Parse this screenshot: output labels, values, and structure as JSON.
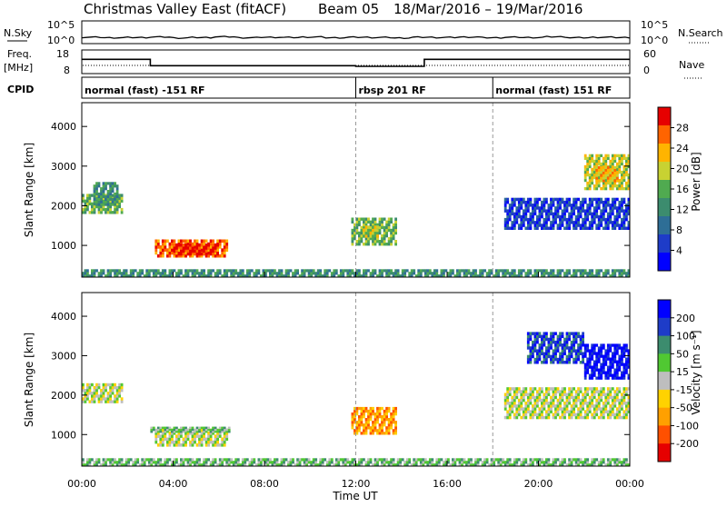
{
  "header": {
    "title": "Christmas Valley East (fitACF)",
    "beam": "Beam 05",
    "date_range": "18/Mar/2016 – 19/Mar/2016"
  },
  "noise_panel": {
    "left_label": "N.Sky",
    "right_label": "N.Search",
    "left_ticks": [
      "10^5",
      "10^0"
    ],
    "right_ticks": [
      "10^5",
      "10^0"
    ],
    "sky_level": [
      0.28,
      0.26,
      0.27,
      0.29,
      0.25,
      0.27,
      0.3,
      0.26,
      0.28,
      0.27,
      0.29,
      0.26,
      0.28,
      0.27,
      0.25,
      0.28,
      0.27,
      0.29,
      0.26,
      0.28,
      0.27,
      0.3,
      0.26,
      0.28,
      0.27
    ]
  },
  "freq_panel": {
    "left_label_1": "Freq.",
    "left_label_2": "[MHz]",
    "left_ticks": [
      "18",
      "8"
    ],
    "right_label": "Nave",
    "right_ticks": [
      "60",
      "0"
    ],
    "freq_steps": [
      {
        "start_hour": 0,
        "end_hour": 3,
        "mhz": 14.5
      },
      {
        "start_hour": 3,
        "end_hour": 12,
        "mhz": 10.6
      },
      {
        "start_hour": 12,
        "end_hour": 15,
        "mhz": 10.2
      },
      {
        "start_hour": 15,
        "end_hour": 24,
        "mhz": 14.5
      }
    ]
  },
  "cpid_panel": {
    "label": "CPID",
    "segments": [
      {
        "start_hour": 0,
        "text": "normal (fast) -151 RF"
      },
      {
        "start_hour": 12,
        "text": "rbsp 201 RF"
      },
      {
        "start_hour": 18,
        "text": "normal (fast) 151 RF"
      }
    ]
  },
  "colors": {
    "power_scale": [
      "#0000ff",
      "#1e3cc8",
      "#2e6e96",
      "#3c8c6e",
      "#50aa50",
      "#c8d232",
      "#ffb400",
      "#ff6400",
      "#e60000"
    ],
    "velocity_scale": [
      "#0000ff",
      "#1e3cc8",
      "#3c8c6e",
      "#50c832",
      "#bebebe",
      "#ffd200",
      "#ffa000",
      "#ff5000",
      "#e60000"
    ]
  },
  "chart_data": [
    {
      "type": "heatmap",
      "name": "power",
      "ylabel": "Slant Range [km]",
      "ylim": [
        200,
        4600
      ],
      "yticks": [
        1000,
        2000,
        3000,
        4000
      ],
      "xlim": [
        0,
        24
      ],
      "colorbar_label": "Power [dB]",
      "colorbar_ticks": [
        "28",
        "24",
        "20",
        "16",
        "12",
        "8",
        "4"
      ],
      "regions": [
        {
          "t0": 3.2,
          "t1": 6.4,
          "r0": 700,
          "r1": 1150,
          "level": 7
        },
        {
          "t0": 4.0,
          "t1": 6.0,
          "r0": 750,
          "r1": 1050,
          "level": 8
        },
        {
          "t0": 0.0,
          "t1": 1.8,
          "r0": 1800,
          "r1": 2300,
          "level": 4
        },
        {
          "t0": 0.5,
          "t1": 1.6,
          "r0": 2000,
          "r1": 2600,
          "level": 3
        },
        {
          "t0": 11.8,
          "t1": 13.8,
          "r0": 1000,
          "r1": 1700,
          "level": 4
        },
        {
          "t0": 12.3,
          "t1": 13.0,
          "r0": 1200,
          "r1": 1500,
          "level": 5
        },
        {
          "t0": 22.0,
          "t1": 24.0,
          "r0": 2400,
          "r1": 3300,
          "level": 5
        },
        {
          "t0": 22.5,
          "t1": 23.5,
          "r0": 2600,
          "r1": 3000,
          "level": 6
        },
        {
          "t0": 18.5,
          "t1": 24.0,
          "r0": 1400,
          "r1": 2200,
          "level": 1
        },
        {
          "t0": 0.0,
          "t1": 24.0,
          "r0": 200,
          "r1": 400,
          "level": 3
        }
      ]
    },
    {
      "type": "heatmap",
      "name": "velocity",
      "xlabel": "Time UT",
      "ylabel": "Slant Range [km]",
      "ylim": [
        200,
        4600
      ],
      "yticks": [
        1000,
        2000,
        3000,
        4000
      ],
      "xlim": [
        0,
        24
      ],
      "xticks": [
        "00:00",
        "04:00",
        "08:00",
        "12:00",
        "16:00",
        "20:00",
        "00:00"
      ],
      "colorbar_label": "Velocity [m s⁻¹]",
      "colorbar_ticks": [
        "200",
        "100",
        "50",
        "15",
        "-15",
        "-50",
        "-100",
        "-200"
      ],
      "regions": [
        {
          "t0": 3.2,
          "t1": 6.4,
          "r0": 700,
          "r1": 1150,
          "level": 4
        },
        {
          "t0": 3.0,
          "t1": 6.5,
          "r0": 1050,
          "r1": 1200,
          "level": 3
        },
        {
          "t0": 0.0,
          "t1": 1.8,
          "r0": 1800,
          "r1": 2300,
          "level": 4
        },
        {
          "t0": 11.8,
          "t1": 13.8,
          "r0": 1000,
          "r1": 1700,
          "level": 6
        },
        {
          "t0": 22.0,
          "t1": 24.0,
          "r0": 2400,
          "r1": 3300,
          "level": 0
        },
        {
          "t0": 19.5,
          "t1": 22.0,
          "r0": 2800,
          "r1": 3600,
          "level": 1
        },
        {
          "t0": 18.5,
          "t1": 24.0,
          "r0": 1400,
          "r1": 2200,
          "level": 4
        },
        {
          "t0": 0.0,
          "t1": 24.0,
          "r0": 200,
          "r1": 400,
          "level": 3
        }
      ]
    }
  ]
}
